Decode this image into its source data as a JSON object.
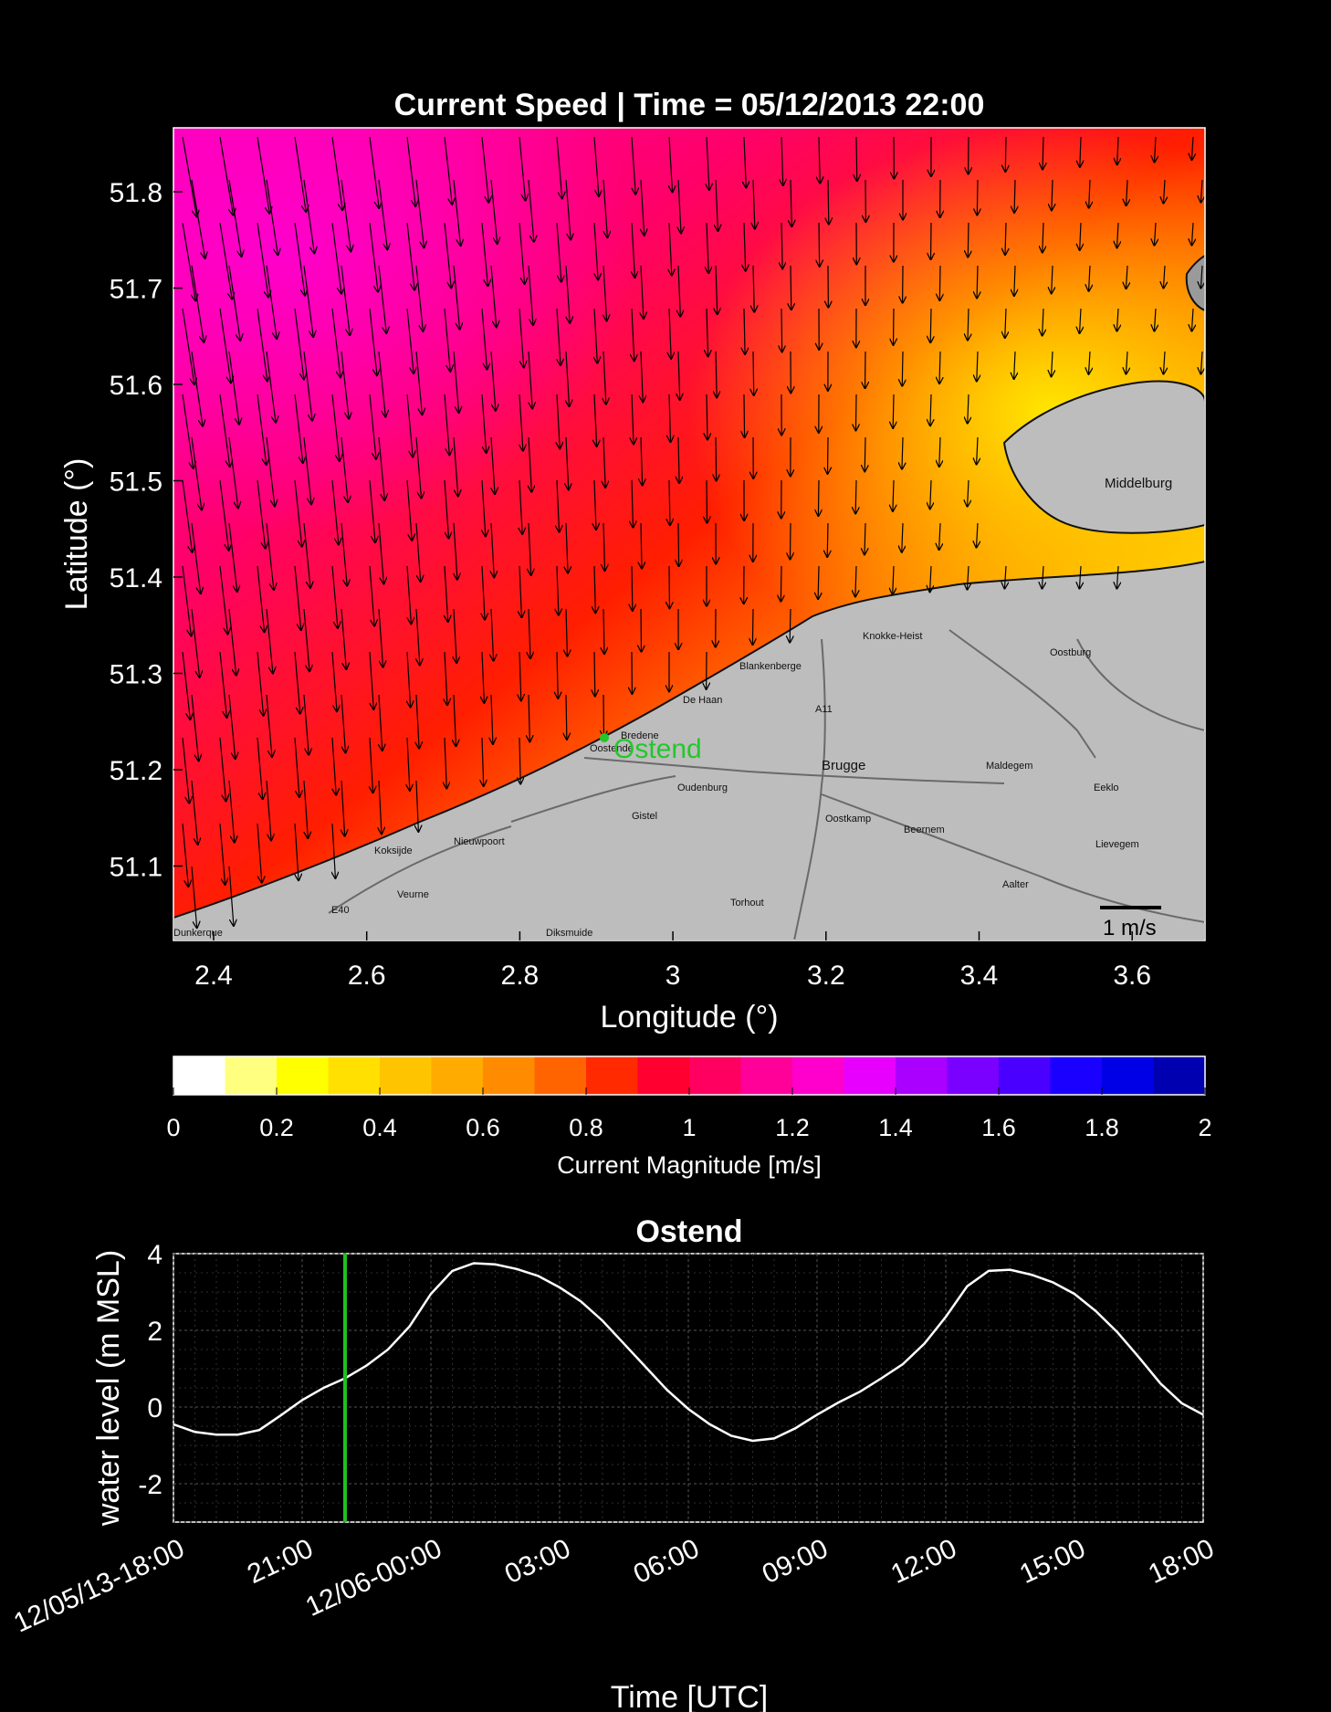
{
  "map": {
    "title": "Current Speed | Time = 05/12/2013 22:00",
    "xlabel": "Longitude (°)",
    "ylabel": "Latitude (°)",
    "xticks": [
      "2.4",
      "2.6",
      "2.8",
      "3",
      "3.2",
      "3.4",
      "3.6"
    ],
    "yticks": [
      "51.8",
      "51.7",
      "51.6",
      "51.5",
      "51.4",
      "51.3",
      "51.2",
      "51.1"
    ],
    "station_label": "Ostend",
    "scale_label": "1 m/s",
    "place_labels": [
      "Middelburg",
      "Knokke-Heist",
      "Oostburg",
      "Blankenberge",
      "De Haan",
      "Bredene",
      "Oostende",
      "Oudenburg",
      "Brugge",
      "Maldegem",
      "Eeklo",
      "Gistel",
      "Oostkamp",
      "Beernem",
      "Lievegem",
      "Nieuwpoort",
      "Koksijde",
      "Veurne",
      "Torhout",
      "Aalter",
      "Diksmuide",
      "Dunkerque",
      "E40",
      "A11"
    ],
    "colors": {
      "station": "#22c82a"
    }
  },
  "colorbar": {
    "label": "Current Magnitude [m/s]",
    "ticks": [
      "0",
      "0.2",
      "0.4",
      "0.6",
      "0.8",
      "1",
      "1.2",
      "1.4",
      "1.6",
      "1.8",
      "2"
    ],
    "range": [
      0,
      2
    ],
    "colors": [
      "#ffffff",
      "#ffff80",
      "#ffff00",
      "#ffe000",
      "#ffc400",
      "#ffab00",
      "#ff8c00",
      "#ff6400",
      "#ff2a00",
      "#ff0030",
      "#ff0060",
      "#ff0099",
      "#ff00cc",
      "#e800ff",
      "#aa00ff",
      "#7a00ff",
      "#4a00ff",
      "#1a00ff",
      "#0000e6",
      "#0000b0"
    ]
  },
  "chart_data": {
    "type": "line",
    "title": "Ostend",
    "xlabel": "Time [UTC]",
    "ylabel": "water level (m MSL)",
    "xticks": [
      "12/05/13-18:00",
      "21:00",
      "12/06-00:00",
      "03:00",
      "06:00",
      "09:00",
      "12:00",
      "15:00",
      "18:00"
    ],
    "yticks": [
      "4",
      "2",
      "0",
      "-2"
    ],
    "xlim_hours": [
      0,
      24
    ],
    "ylim": [
      -3,
      4
    ],
    "grid": true,
    "series": [
      {
        "color": "#ffffff",
        "x_hours": [
          0,
          0.5,
          1,
          1.5,
          2,
          2.5,
          3,
          3.5,
          4,
          4.5,
          5,
          5.5,
          6,
          6.5,
          7,
          7.5,
          8,
          8.5,
          9,
          9.5,
          10,
          10.5,
          11,
          11.5,
          12,
          12.5,
          13,
          13.5,
          14,
          14.5,
          15,
          15.5,
          16,
          16.5,
          17,
          17.5,
          18,
          18.5,
          19,
          19.5,
          20,
          20.5,
          21,
          21.5,
          22,
          22.5,
          23,
          23.5,
          24
        ],
        "values": [
          -0.45,
          -0.65,
          -0.72,
          -0.72,
          -0.6,
          -0.22,
          0.18,
          0.5,
          0.75,
          1.08,
          1.5,
          2.1,
          2.95,
          3.55,
          3.75,
          3.72,
          3.6,
          3.42,
          3.12,
          2.75,
          2.25,
          1.65,
          1.05,
          0.45,
          -0.05,
          -0.45,
          -0.75,
          -0.88,
          -0.82,
          -0.55,
          -0.2,
          0.12,
          0.4,
          0.75,
          1.12,
          1.65,
          2.35,
          3.15,
          3.55,
          3.58,
          3.45,
          3.25,
          2.95,
          2.5,
          1.95,
          1.3,
          0.62,
          0.1,
          -0.2
        ]
      }
    ],
    "current_time_hours": 4,
    "current_time_color": "#1fc01f"
  }
}
